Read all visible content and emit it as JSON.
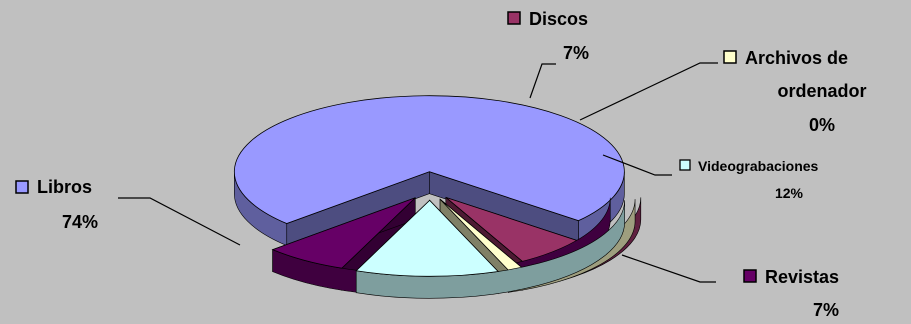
{
  "chart_data": {
    "type": "pie",
    "style": "3d-exploded",
    "legend": "none",
    "slices": [
      {
        "label": "Libros",
        "value": 74,
        "value_label": "74%",
        "color": "#9999ff"
      },
      {
        "label": "Discos",
        "value": 7,
        "value_label": "7%",
        "color": "#993366"
      },
      {
        "label": "Archivos de ordenador",
        "label_lines": [
          "Archivos de",
          "ordenador"
        ],
        "value": 0,
        "value_label": "0%",
        "color": "#ffffcc"
      },
      {
        "label": "Videograbaciones",
        "value": 12,
        "value_label": "12%",
        "color": "#ccffff"
      },
      {
        "label": "Revistas",
        "value": 7,
        "value_label": "7%",
        "color": "#660066"
      }
    ]
  }
}
